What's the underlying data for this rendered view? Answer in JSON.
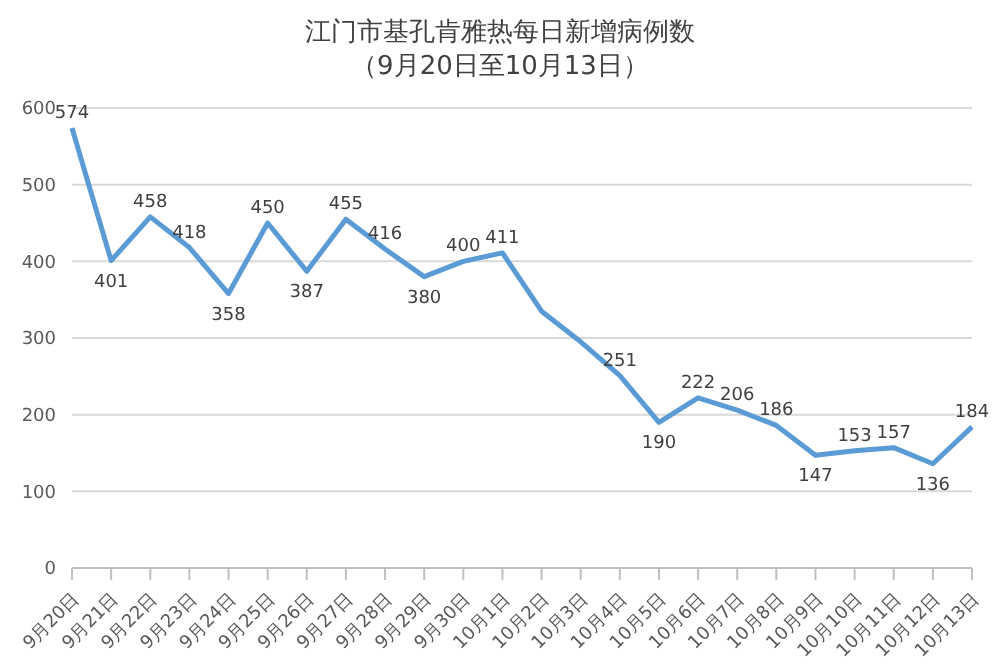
{
  "chart_data": {
    "type": "line",
    "title": "江门市基孔肯雅热每日新增病例数",
    "subtitle": "（9月20日至10月13日）",
    "categories": [
      "9月20日",
      "9月21日",
      "9月22日",
      "9月23日",
      "9月24日",
      "9月25日",
      "9月26日",
      "9月27日",
      "9月28日",
      "9月29日",
      "9月30日",
      "10月1日",
      "10月2日",
      "10月3日",
      "10月4日",
      "10月5日",
      "10月6日",
      "10月7日",
      "10月8日",
      "10月9日",
      "10月10日",
      "10月11日",
      "10月12日",
      "10月13日"
    ],
    "series": [
      {
        "color": "#5b9bd5",
        "values": [
          574,
          401,
          458,
          418,
          358,
          450,
          387,
          455,
          416,
          380,
          400,
          411,
          335,
          295,
          251,
          190,
          222,
          206,
          186,
          147,
          153,
          157,
          136,
          184
        ],
        "value_labels": [
          "574",
          "401",
          "458",
          "418",
          "358",
          "450",
          "387",
          "455",
          "416",
          "380",
          "400",
          "411",
          null,
          null,
          "251",
          "190",
          "222",
          "206",
          "186",
          "147",
          "153",
          "157",
          "136",
          "184"
        ]
      }
    ],
    "ylim": [
      0,
      600
    ],
    "yticks": [
      0,
      100,
      200,
      300,
      400,
      500,
      600
    ],
    "grid": "y",
    "marker": "none",
    "line_style": "solid"
  }
}
